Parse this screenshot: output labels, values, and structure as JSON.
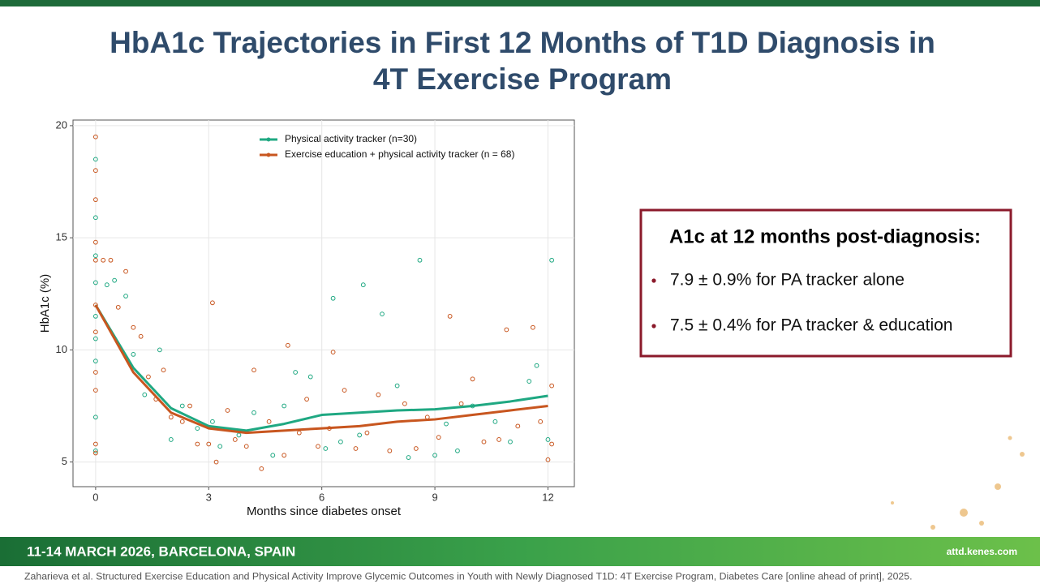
{
  "slide": {
    "title_line1": "HbA1c Trajectories in First 12 Months of T1D Diagnosis in",
    "title_line2": "4T Exercise Program",
    "box_heading": "A1c at 12 months post-diagnosis:",
    "bullets": [
      "7.9 ± 0.9% for PA tracker alone",
      "7.5 ± 0.4% for PA tracker & education"
    ],
    "footer_event": "11-14 MARCH 2026, BARCELONA, SPAIN",
    "footer_url": "attd.kenes.com",
    "citation": "Zaharieva et al. Structured Exercise Education and Physical Activity Improve Glycemic Outcomes in Youth with Newly Diagnosed T1D: 4T Exercise Program, Diabetes Care [online ahead of print], 2025."
  },
  "chart_data": {
    "type": "scatter",
    "x_label": "Months since diabetes onset",
    "y_label": "HbA1c (%)",
    "xlim": [
      -0.6,
      12.7
    ],
    "ylim": [
      3.9,
      20.25
    ],
    "xticks": [
      0,
      3,
      6,
      9,
      12
    ],
    "yticks": [
      5,
      10,
      15,
      20
    ],
    "grid": true,
    "legend": "top",
    "series": [
      {
        "name": "Physical activity tracker (n=30)",
        "color": "#1fa882",
        "x": [
          0,
          0,
          0,
          0,
          0,
          0,
          0,
          0,
          0,
          0.3,
          0.5,
          0.8,
          1,
          1.3,
          1.7,
          2,
          2.3,
          2.7,
          3.1,
          3.3,
          3.8,
          4.2,
          4.7,
          5,
          5.3,
          5.7,
          6.1,
          6.3,
          6.5,
          7,
          7.1,
          7.6,
          8,
          8.3,
          8.6,
          9,
          9.3,
          9.6,
          10,
          10.6,
          11,
          11.5,
          11.7,
          12.1,
          12
        ],
        "values": [
          18.5,
          15.9,
          14.2,
          13,
          11.5,
          10.5,
          9.5,
          7,
          5.5,
          12.9,
          13.1,
          12.4,
          9.8,
          8,
          10,
          6,
          7.5,
          6.5,
          6.8,
          5.7,
          6.2,
          7.2,
          5.3,
          7.5,
          9,
          8.8,
          5.6,
          12.3,
          5.9,
          6.2,
          12.9,
          11.6,
          8.4,
          5.2,
          14,
          5.3,
          6.7,
          5.5,
          7.5,
          6.8,
          5.9,
          8.6,
          9.3,
          14,
          6
        ],
        "trend_x": [
          0,
          1,
          2,
          3,
          4,
          5,
          6,
          7,
          8,
          9,
          10,
          11,
          12
        ],
        "trend_values": [
          12,
          9.2,
          7.4,
          6.6,
          6.4,
          6.7,
          7.1,
          7.2,
          7.3,
          7.35,
          7.5,
          7.7,
          7.95
        ]
      },
      {
        "name": "Exercise education + physical activity tracker (n = 68)",
        "color": "#c8561f",
        "x": [
          0,
          0,
          0,
          0,
          0,
          0,
          0,
          0,
          0,
          0,
          0,
          0.2,
          0.4,
          0.6,
          0.8,
          1,
          1.2,
          1.4,
          1.6,
          1.8,
          2,
          2.3,
          2.5,
          2.7,
          3,
          3.1,
          3.2,
          3.5,
          3.7,
          4,
          4.2,
          4.4,
          4.6,
          5,
          5.1,
          5.4,
          5.6,
          5.9,
          6.2,
          6.3,
          6.6,
          6.9,
          7.2,
          7.5,
          7.8,
          8.2,
          8.5,
          8.8,
          9.1,
          9.4,
          9.7,
          10,
          10.3,
          10.7,
          10.9,
          11.2,
          11.6,
          11.8,
          12,
          12.1,
          12.1
        ],
        "values": [
          19.5,
          18,
          16.7,
          14.8,
          14,
          12,
          10.8,
          9,
          8.2,
          5.8,
          5.4,
          14,
          14,
          11.9,
          13.5,
          11,
          10.6,
          8.8,
          7.8,
          9.1,
          7,
          6.8,
          7.5,
          5.8,
          5.8,
          12.1,
          5,
          7.3,
          6,
          5.7,
          9.1,
          4.7,
          6.8,
          5.3,
          10.2,
          6.3,
          7.8,
          5.7,
          6.5,
          9.9,
          8.2,
          5.6,
          6.3,
          8,
          5.5,
          7.6,
          5.6,
          7,
          6.1,
          11.5,
          7.6,
          8.7,
          5.9,
          6,
          10.9,
          6.6,
          11,
          6.8,
          5.1,
          8.4,
          5.8
        ],
        "trend_x": [
          0,
          1,
          2,
          3,
          4,
          5,
          6,
          7,
          8,
          9,
          10,
          11,
          12
        ],
        "trend_values": [
          12,
          9,
          7.2,
          6.5,
          6.3,
          6.4,
          6.5,
          6.6,
          6.8,
          6.9,
          7.1,
          7.3,
          7.5
        ]
      }
    ]
  }
}
